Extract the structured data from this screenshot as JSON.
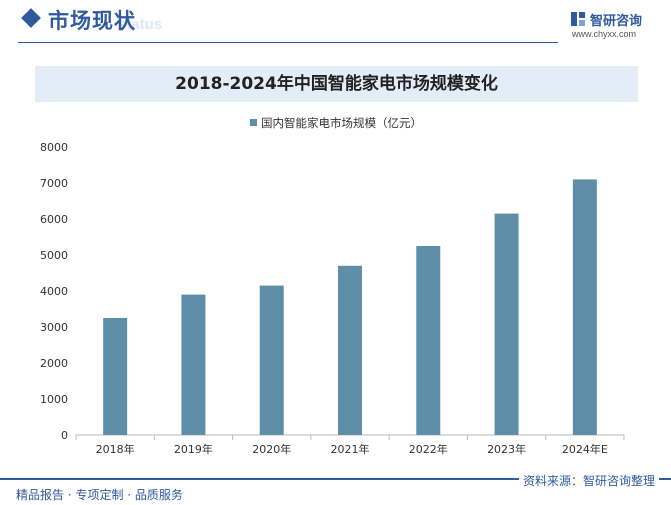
{
  "header": {
    "section_title": "市场现状",
    "section_title_en": "status",
    "brand_name": "智研咨询",
    "brand_url": "www.chyxx.com"
  },
  "chart_data": {
    "type": "bar",
    "title": "2018-2024年中国智能家电市场规模变化",
    "categories": [
      "2018年",
      "2019年",
      "2020年",
      "2021年",
      "2022年",
      "2023年",
      "2024年E"
    ],
    "series": [
      {
        "name": "国内智能家电市场规模（亿元）",
        "values": [
          3250,
          3900,
          4150,
          4700,
          5250,
          6150,
          7100
        ]
      }
    ],
    "ylim": [
      0,
      8000
    ],
    "yticks": [
      "0",
      "1000",
      "2000",
      "3000",
      "4000",
      "5000",
      "6000",
      "7000",
      "8000"
    ],
    "xlabel": "",
    "ylabel": "",
    "legend_position": "top-center",
    "grid": false,
    "bar_color": "#5f8fa8"
  },
  "footer": {
    "left_text": "精品报告 · 专项定制 · 品质服务",
    "right_text": "资料来源：智研咨询整理"
  }
}
